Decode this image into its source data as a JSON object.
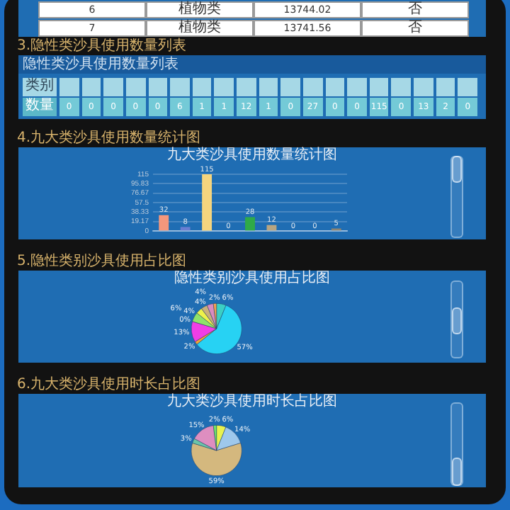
{
  "chart_data": [
    {
      "type": "other",
      "cell_labels": [
        [
          "6",
          "植物类",
          "13744.02",
          "否"
        ],
        [
          "7",
          "植物类",
          "13741.56",
          "否"
        ]
      ]
    },
    {
      "type": "other",
      "title": "3.隐性类沙具使用数量列表",
      "subtitle": "隐性类沙具使用数量列表",
      "xlabel": "类别",
      "ylabel": "数量",
      "categories": [
        null,
        null,
        null,
        null,
        null,
        null,
        null,
        null,
        null,
        null,
        null,
        null,
        null,
        null,
        null,
        null,
        null,
        null,
        null
      ],
      "values": [
        0,
        0,
        0,
        0,
        0,
        6,
        1,
        1,
        12,
        1,
        0,
        27,
        0,
        0,
        115,
        0,
        13,
        2,
        0
      ],
      "data_labels": true
    },
    {
      "type": "bar",
      "title": "4.九大类沙具使用数量统计图",
      "subtitle": "九大类沙具使用数量统计图",
      "categories": [
        null,
        null,
        null,
        null,
        null,
        null,
        null,
        null,
        null
      ],
      "values": [
        32,
        8,
        115,
        0,
        28,
        12,
        0,
        0,
        5
      ],
      "colors": [
        "#f4977c",
        "#6a7ed2",
        "#f6d57e",
        "#8ac6e0",
        "#2faa48",
        "#b8a581",
        "#d98cc0",
        "#9ec8ec",
        "#8c8472"
      ],
      "ylim": [
        0,
        115
      ],
      "yticks": [
        0,
        19.17,
        38.33,
        57.5,
        76.67,
        95.83,
        115
      ],
      "grid": "y",
      "data_labels": true
    },
    {
      "type": "pie",
      "title": "5.隐性类别沙具使用占比图",
      "subtitle": "隐性类别沙具使用占比图",
      "categories": [
        null,
        null,
        null,
        null,
        null,
        null,
        null,
        null,
        null,
        null,
        null,
        null,
        null,
        null,
        null,
        null,
        null,
        null,
        null
      ],
      "values": [
        6,
        57,
        2,
        13,
        0,
        6,
        4,
        4,
        4,
        2,
        0,
        0,
        0,
        0,
        0,
        0,
        0,
        0,
        0
      ],
      "colors": [
        "#3ccfc4",
        "#27d2f3",
        "#f2a33a",
        "#f03ee6",
        "#9aa4b0",
        "#8fe36a",
        "#eef24a",
        "#c9b07c",
        "#d98cc0",
        "#f0a050",
        "#a8b8c8",
        "#5aa0c0",
        "#b0a0d8",
        "#506070",
        "#9050c0",
        "#f0c090",
        "#4060d0",
        "#40b080",
        "#80b0e0"
      ],
      "value_labels": [
        "6%",
        "57%",
        "2%",
        "13%",
        "0%",
        "6%",
        "4%",
        "4%",
        "4%",
        "2%",
        null,
        null,
        null,
        null,
        null,
        null,
        null,
        null,
        null
      ]
    },
    {
      "type": "pie",
      "title": "6.九大类沙具使用时长占比图",
      "subtitle": "九大类沙具使用时长占比图",
      "categories": [
        null,
        null,
        null,
        null,
        null,
        null,
        null,
        null,
        null
      ],
      "values": [
        6,
        14,
        59,
        3,
        15,
        2,
        0,
        0,
        0
      ],
      "colors": [
        "#e9f24e",
        "#9ec8ec",
        "#d4b87e",
        "#6cc4a8",
        "#de8ec0",
        "#6ee36a",
        "#b0dcc0",
        "#2e6a48",
        "#8898e0"
      ],
      "value_labels": [
        "6%",
        "14%",
        "59%",
        "3%",
        "15%",
        "2%",
        null,
        null,
        null
      ]
    }
  ]
}
